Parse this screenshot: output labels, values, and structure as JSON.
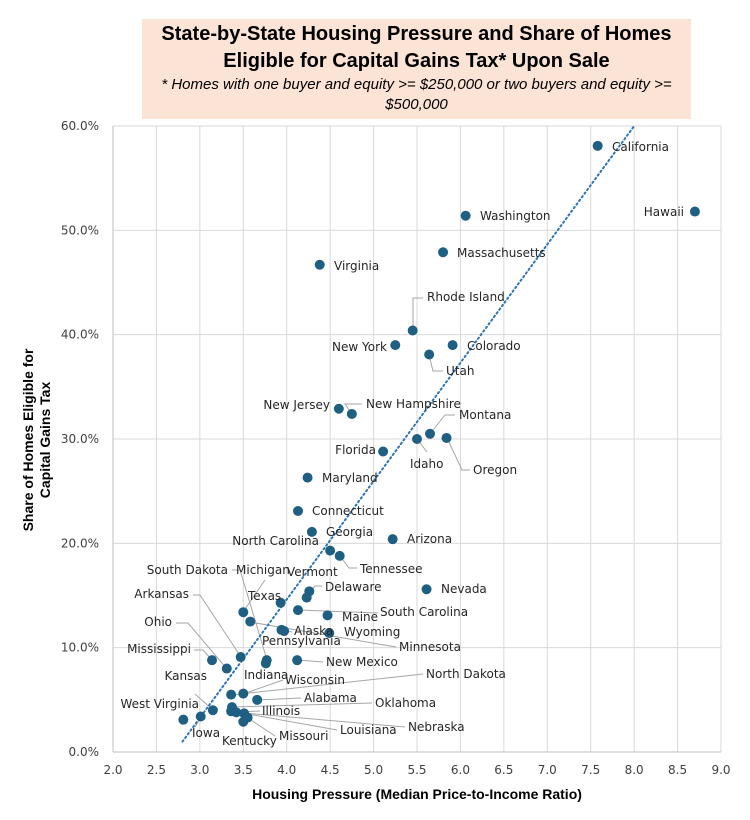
{
  "chart_data": {
    "type": "scatter",
    "title": "State-by-State Housing Pressure and Share of Homes Eligible for Capital Gains Tax* Upon Sale",
    "subtitle": "* Homes with one buyer and equity >= $250,000 or two buyers and equity >= $500,000",
    "xlabel": "Housing Pressure (Median Price-to-Income Ratio)",
    "ylabel": "Share of Homes Eligible for Capital Gains Tax",
    "xlim": [
      2.0,
      9.0
    ],
    "ylim": [
      0,
      60
    ],
    "x_ticks": [
      "2.0",
      "2.5",
      "3.0",
      "3.5",
      "4.0",
      "4.5",
      "5.0",
      "5.5",
      "6.0",
      "6.5",
      "7.0",
      "7.5",
      "8.0",
      "8.5",
      "9.0"
    ],
    "y_ticks": [
      "0.0%",
      "10.0%",
      "20.0%",
      "30.0%",
      "40.0%",
      "50.0%",
      "60.0%"
    ],
    "grid": true,
    "marker_color": "#1f5f82",
    "trendline": {
      "style": "dotted",
      "color": "#2e75b6",
      "x": [
        2.8,
        8.0
      ],
      "y": [
        1.0,
        60.0
      ]
    },
    "points": [
      {
        "state": "California",
        "x": 7.58,
        "y": 58.1
      },
      {
        "state": "Hawaii",
        "x": 8.7,
        "y": 51.8
      },
      {
        "state": "Washington",
        "x": 6.06,
        "y": 51.4
      },
      {
        "state": "Massachusetts",
        "x": 5.8,
        "y": 47.9
      },
      {
        "state": "Virginia",
        "x": 4.38,
        "y": 46.7
      },
      {
        "state": "Rhode Island",
        "x": 5.45,
        "y": 40.4
      },
      {
        "state": "New York",
        "x": 5.25,
        "y": 39.0
      },
      {
        "state": "Colorado",
        "x": 5.91,
        "y": 39.0
      },
      {
        "state": "Utah",
        "x": 5.64,
        "y": 38.1
      },
      {
        "state": "New Jersey",
        "x": 4.6,
        "y": 32.9
      },
      {
        "state": "New Hampshire",
        "x": 4.75,
        "y": 32.4
      },
      {
        "state": "Montana",
        "x": 5.65,
        "y": 30.5
      },
      {
        "state": "Oregon",
        "x": 5.84,
        "y": 30.1
      },
      {
        "state": "Idaho",
        "x": 5.5,
        "y": 30.0
      },
      {
        "state": "Florida",
        "x": 5.11,
        "y": 28.8
      },
      {
        "state": "Maryland",
        "x": 4.24,
        "y": 26.3
      },
      {
        "state": "Connecticut",
        "x": 4.13,
        "y": 23.1
      },
      {
        "state": "Georgia",
        "x": 4.29,
        "y": 21.1
      },
      {
        "state": "Arizona",
        "x": 5.22,
        "y": 20.4
      },
      {
        "state": "North Carolina",
        "x": 4.5,
        "y": 19.3
      },
      {
        "state": "Tennessee",
        "x": 4.61,
        "y": 18.8
      },
      {
        "state": "Nevada",
        "x": 5.61,
        "y": 15.6
      },
      {
        "state": "Delaware",
        "x": 4.26,
        "y": 15.4
      },
      {
        "state": "Vermont",
        "x": 4.23,
        "y": 14.8
      },
      {
        "state": "Texas",
        "x": 3.93,
        "y": 14.3
      },
      {
        "state": "South Carolina",
        "x": 4.13,
        "y": 13.6
      },
      {
        "state": "Maine",
        "x": 4.47,
        "y": 13.1
      },
      {
        "state": "Michigan",
        "x": 3.5,
        "y": 13.4
      },
      {
        "state": "Minnesota",
        "x": 3.58,
        "y": 12.5
      },
      {
        "state": "Alaska",
        "x": 3.94,
        "y": 11.7
      },
      {
        "state": "Pennsylvania",
        "x": 3.97,
        "y": 11.6
      },
      {
        "state": "Wyoming",
        "x": 4.49,
        "y": 11.4
      },
      {
        "state": "New Mexico",
        "x": 4.12,
        "y": 8.8
      },
      {
        "state": "South Dakota",
        "x": 3.77,
        "y": 8.8
      },
      {
        "state": "Indiana",
        "x": 3.76,
        "y": 8.5
      },
      {
        "state": "Arkansas",
        "x": 3.47,
        "y": 9.1
      },
      {
        "state": "Mississippi",
        "x": 3.14,
        "y": 8.8
      },
      {
        "state": "Ohio",
        "x": 3.31,
        "y": 8.0
      },
      {
        "state": "Wisconsin",
        "x": 3.5,
        "y": 5.6
      },
      {
        "state": "North Dakota",
        "x": 3.36,
        "y": 5.5
      },
      {
        "state": "Alabama",
        "x": 3.66,
        "y": 5.0
      },
      {
        "state": "Oklahoma",
        "x": 3.37,
        "y": 4.3
      },
      {
        "state": "Kansas",
        "x": 3.15,
        "y": 4.0
      },
      {
        "state": "Louisiana",
        "x": 3.36,
        "y": 3.9
      },
      {
        "state": "Illinois",
        "x": 3.42,
        "y": 3.8
      },
      {
        "state": "Nebraska",
        "x": 3.51,
        "y": 3.7
      },
      {
        "state": "Iowa",
        "x": 3.01,
        "y": 3.4
      },
      {
        "state": "Missouri",
        "x": 3.55,
        "y": 3.3
      },
      {
        "state": "West Virginia",
        "x": 2.81,
        "y": 3.1
      },
      {
        "state": "Kentucky",
        "x": 3.5,
        "y": 2.9
      }
    ]
  }
}
